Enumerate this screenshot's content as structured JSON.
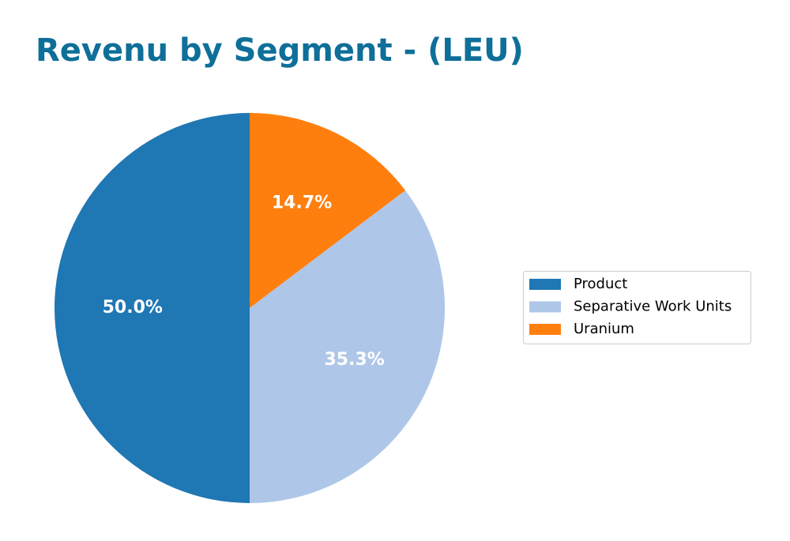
{
  "chart_data": {
    "type": "pie",
    "title": "Revenu by Segment - (LEU)",
    "categories": [
      "Product",
      "Separative Work Units",
      "Uranium"
    ],
    "values": [
      50.0,
      35.3,
      14.7
    ],
    "value_labels": [
      "50.0%",
      "35.3%",
      "14.7%"
    ],
    "colors": [
      "#1f77b4",
      "#aec7e8",
      "#ff7f0e"
    ],
    "legend": "right"
  }
}
